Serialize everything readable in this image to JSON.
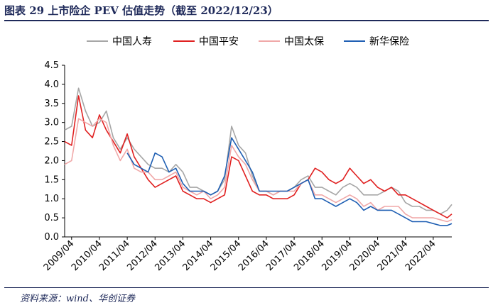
{
  "chart_data": {
    "type": "line",
    "title": "图表 29 上市险企 PEV 估值走势（截至 2022/12/23）",
    "source": "资料来源：wind、华创证券",
    "xlabel": "",
    "ylabel": "",
    "ylim": [
      0,
      4.5
    ],
    "y_ticks": [
      "0.0",
      "0.5",
      "1.0",
      "1.5",
      "2.0",
      "2.5",
      "3.0",
      "3.5",
      "4.0",
      "4.5"
    ],
    "x_ticks": [
      "2009/04",
      "2010/04",
      "2011/04",
      "2012/04",
      "2013/04",
      "2014/04",
      "2015/04",
      "2016/04",
      "2017/04",
      "2018/04",
      "2019/04",
      "2020/04",
      "2021/04",
      "2022/04"
    ],
    "x_range": [
      "2009-01",
      "2022-12"
    ],
    "grid": false,
    "legend": "top",
    "x": [
      "2009-01",
      "2009-04",
      "2009-07",
      "2009-10",
      "2010-01",
      "2010-04",
      "2010-07",
      "2010-10",
      "2011-01",
      "2011-04",
      "2011-07",
      "2011-10",
      "2012-01",
      "2012-04",
      "2012-07",
      "2012-10",
      "2013-01",
      "2013-04",
      "2013-07",
      "2013-10",
      "2014-01",
      "2014-04",
      "2014-07",
      "2014-10",
      "2015-01",
      "2015-04",
      "2015-07",
      "2015-10",
      "2016-01",
      "2016-04",
      "2016-07",
      "2016-10",
      "2017-01",
      "2017-04",
      "2017-07",
      "2017-10",
      "2018-01",
      "2018-04",
      "2018-07",
      "2018-10",
      "2019-01",
      "2019-04",
      "2019-07",
      "2019-10",
      "2020-01",
      "2020-04",
      "2020-07",
      "2020-10",
      "2021-01",
      "2021-04",
      "2021-07",
      "2021-10",
      "2022-01",
      "2022-04",
      "2022-07",
      "2022-10",
      "2022-12"
    ],
    "series": [
      {
        "name": "中国人寿",
        "color": "#a6a6a6",
        "values": [
          2.8,
          2.9,
          3.9,
          3.3,
          2.9,
          3.0,
          3.3,
          2.6,
          2.3,
          2.6,
          2.3,
          2.1,
          1.9,
          1.8,
          1.8,
          1.7,
          1.9,
          1.7,
          1.3,
          1.3,
          1.2,
          1.1,
          1.2,
          1.5,
          2.9,
          2.4,
          2.2,
          1.6,
          1.2,
          1.2,
          1.1,
          1.2,
          1.2,
          1.3,
          1.5,
          1.6,
          1.3,
          1.3,
          1.2,
          1.1,
          1.3,
          1.4,
          1.3,
          1.1,
          1.1,
          1.1,
          1.2,
          1.3,
          1.2,
          0.9,
          0.8,
          0.8,
          0.7,
          0.7,
          0.6,
          0.7,
          0.85
        ]
      },
      {
        "name": "中国平安",
        "color": "#e02020",
        "values": [
          2.5,
          2.4,
          3.7,
          2.8,
          2.6,
          3.2,
          2.8,
          2.5,
          2.2,
          2.7,
          2.1,
          1.8,
          1.5,
          1.3,
          1.4,
          1.5,
          1.6,
          1.2,
          1.1,
          1.0,
          1.0,
          0.9,
          1.0,
          1.1,
          2.1,
          2.0,
          1.6,
          1.2,
          1.1,
          1.1,
          1.0,
          1.0,
          1.0,
          1.1,
          1.4,
          1.5,
          1.8,
          1.7,
          1.5,
          1.4,
          1.5,
          1.8,
          1.6,
          1.4,
          1.5,
          1.3,
          1.2,
          1.3,
          1.1,
          1.1,
          1.0,
          0.9,
          0.8,
          0.7,
          0.6,
          0.5,
          0.6
        ]
      },
      {
        "name": "中国太保",
        "color": "#f0a8a8",
        "values": [
          1.9,
          2.0,
          3.1,
          3.0,
          2.9,
          3.1,
          3.0,
          2.4,
          2.0,
          2.3,
          1.8,
          1.7,
          1.7,
          1.5,
          1.5,
          1.6,
          1.7,
          1.3,
          1.2,
          1.1,
          1.2,
          1.0,
          1.1,
          1.3,
          2.4,
          2.1,
          1.9,
          1.5,
          1.2,
          1.2,
          1.1,
          1.2,
          1.2,
          1.2,
          1.4,
          1.5,
          1.1,
          1.1,
          1.0,
          0.9,
          1.0,
          1.1,
          1.0,
          0.8,
          0.9,
          0.7,
          0.8,
          0.8,
          0.8,
          0.6,
          0.5,
          0.5,
          0.5,
          0.5,
          0.45,
          0.4,
          0.45
        ]
      },
      {
        "name": "新华保险",
        "color": "#1f5fb3",
        "values": [
          null,
          null,
          null,
          null,
          null,
          null,
          null,
          null,
          null,
          2.2,
          1.9,
          1.8,
          1.7,
          2.2,
          2.1,
          1.7,
          1.8,
          1.4,
          1.2,
          1.2,
          1.2,
          1.1,
          1.2,
          1.6,
          2.6,
          2.3,
          2.0,
          1.7,
          1.2,
          1.2,
          1.2,
          1.2,
          1.2,
          1.3,
          1.4,
          1.5,
          1.0,
          1.0,
          0.9,
          0.8,
          0.9,
          1.0,
          0.9,
          0.7,
          0.8,
          0.7,
          0.7,
          0.7,
          0.6,
          0.5,
          0.4,
          0.4,
          0.4,
          0.35,
          0.3,
          0.3,
          0.35
        ]
      }
    ]
  }
}
